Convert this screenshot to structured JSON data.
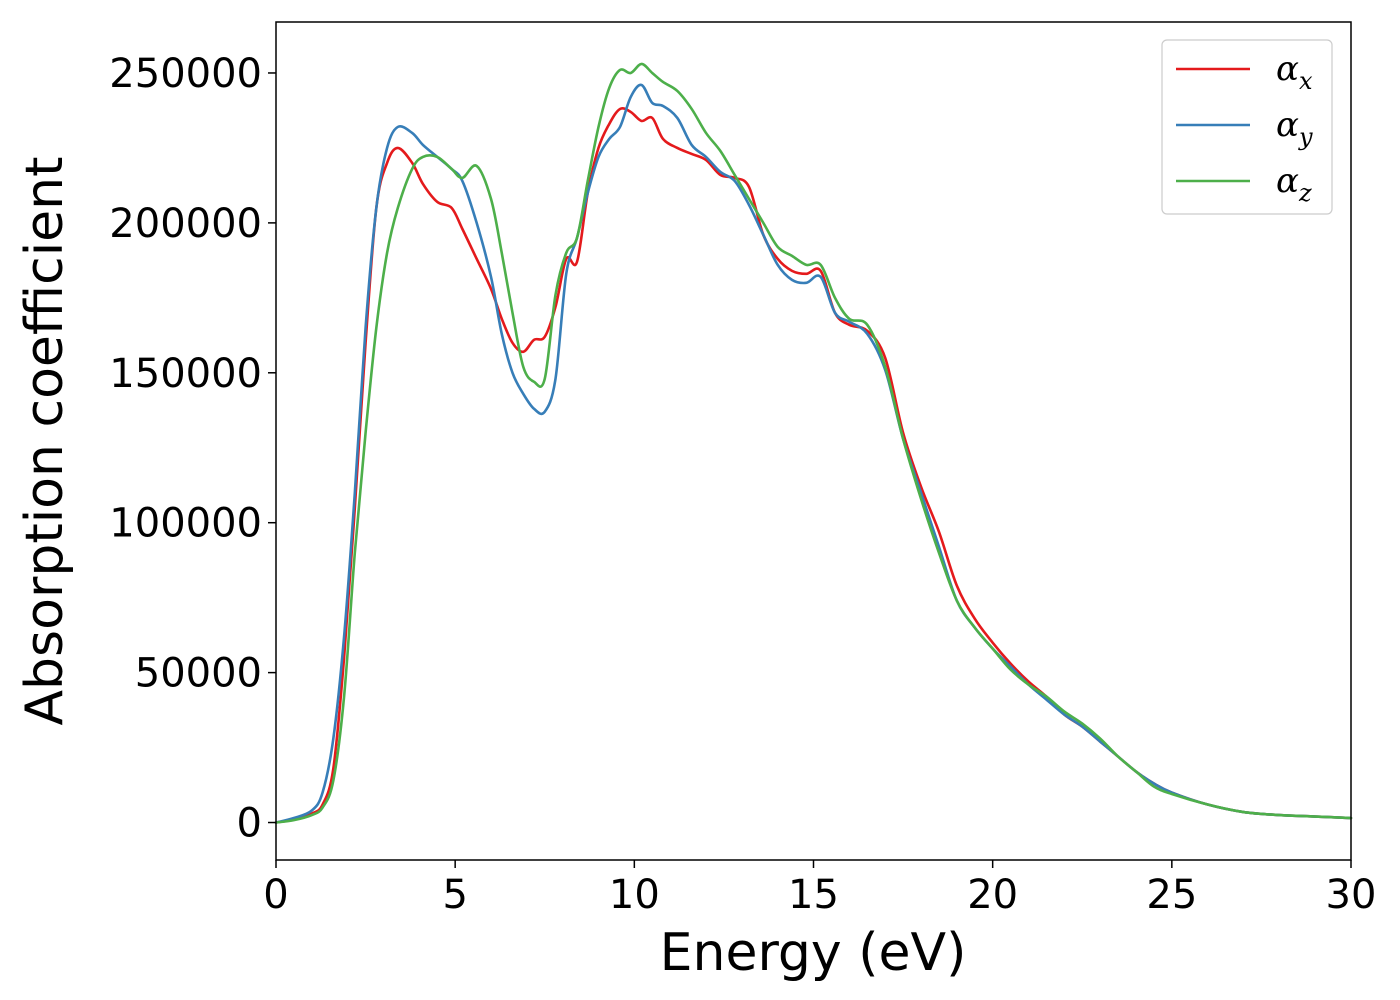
{
  "chart_data": {
    "type": "line",
    "xlabel": "Energy (eV)",
    "ylabel": "Absorption coefficient",
    "xlim": [
      0,
      30
    ],
    "ylim": [
      -12500,
      267000
    ],
    "xticks": [
      0,
      5,
      10,
      15,
      20,
      25,
      30
    ],
    "yticks": [
      0,
      50000,
      100000,
      150000,
      200000,
      250000
    ],
    "grid": false,
    "legend_position": "top-right",
    "x": [
      0,
      0.5,
      1.0,
      1.3,
      1.6,
      1.9,
      2.2,
      2.5,
      2.8,
      3.1,
      3.4,
      3.8,
      4.1,
      4.5,
      4.9,
      5.2,
      5.6,
      6.0,
      6.3,
      6.6,
      6.9,
      7.2,
      7.5,
      7.8,
      8.1,
      8.4,
      8.7,
      9.0,
      9.3,
      9.6,
      9.9,
      10.2,
      10.5,
      10.8,
      11.2,
      11.6,
      12.0,
      12.4,
      12.8,
      13.2,
      13.6,
      14.0,
      14.4,
      14.8,
      15.2,
      15.6,
      16.0,
      16.5,
      17.0,
      17.5,
      18.0,
      18.5,
      19.0,
      19.5,
      20.0,
      20.5,
      21.0,
      21.5,
      22.0,
      22.5,
      23.0,
      23.5,
      24.0,
      24.5,
      25.0,
      26.0,
      27.0,
      28.0,
      29.0,
      30.0
    ],
    "series": [
      {
        "name": "α_x",
        "label_main": "α",
        "label_sub": "x",
        "color": "#e41a1c",
        "values": [
          0,
          1000,
          3000,
          6000,
          18000,
          55000,
          105000,
          160000,
          205000,
          220000,
          225000,
          220000,
          213000,
          207000,
          205000,
          198000,
          188000,
          178000,
          168000,
          160000,
          157000,
          161000,
          162000,
          172000,
          188000,
          187000,
          210000,
          225000,
          233000,
          238000,
          237000,
          234000,
          235000,
          228000,
          225000,
          223000,
          221000,
          216000,
          215000,
          212000,
          196000,
          188000,
          184000,
          183000,
          184000,
          170000,
          166000,
          164000,
          155000,
          130000,
          112000,
          97000,
          79000,
          68000,
          60000,
          53000,
          47000,
          42000,
          36000,
          32000,
          27000,
          22000,
          17000,
          13000,
          10000,
          6000,
          3500,
          2500,
          2000,
          1500
        ]
      },
      {
        "name": "α_y",
        "label_main": "α",
        "label_sub": "y",
        "color": "#377eb8",
        "values": [
          0,
          1500,
          4000,
          10000,
          28000,
          62000,
          110000,
          165000,
          205000,
          225000,
          232000,
          230000,
          226000,
          222000,
          218000,
          214000,
          200000,
          182000,
          163000,
          150000,
          143000,
          138000,
          137000,
          148000,
          183000,
          195000,
          210000,
          222000,
          228000,
          232000,
          242000,
          246000,
          240000,
          239000,
          235000,
          226000,
          222000,
          217000,
          214000,
          206000,
          196000,
          186000,
          181000,
          180000,
          182000,
          170000,
          167000,
          163000,
          151000,
          128000,
          110000,
          92000,
          74000,
          65000,
          58000,
          52000,
          46000,
          41000,
          36000,
          32000,
          27000,
          22000,
          17000,
          13000,
          10000,
          6000,
          3500,
          2500,
          2000,
          1500
        ]
      },
      {
        "name": "α_z",
        "label_main": "α",
        "label_sub": "z",
        "color": "#4daf4a",
        "values": [
          0,
          800,
          2500,
          5000,
          14000,
          42000,
          90000,
          130000,
          165000,
          190000,
          205000,
          218000,
          222000,
          222000,
          218000,
          215000,
          219000,
          208000,
          190000,
          170000,
          152000,
          147000,
          148000,
          176000,
          190000,
          195000,
          214000,
          232000,
          245000,
          251000,
          250000,
          253000,
          250000,
          247000,
          244000,
          238000,
          230000,
          224000,
          216000,
          208000,
          200000,
          192000,
          189000,
          186000,
          186000,
          175000,
          168000,
          166000,
          152000,
          128000,
          108000,
          90000,
          74000,
          65000,
          58000,
          51000,
          46000,
          42000,
          37000,
          33000,
          28000,
          22000,
          17000,
          12000,
          9500,
          6000,
          3500,
          2500,
          2000,
          1500
        ]
      }
    ]
  }
}
